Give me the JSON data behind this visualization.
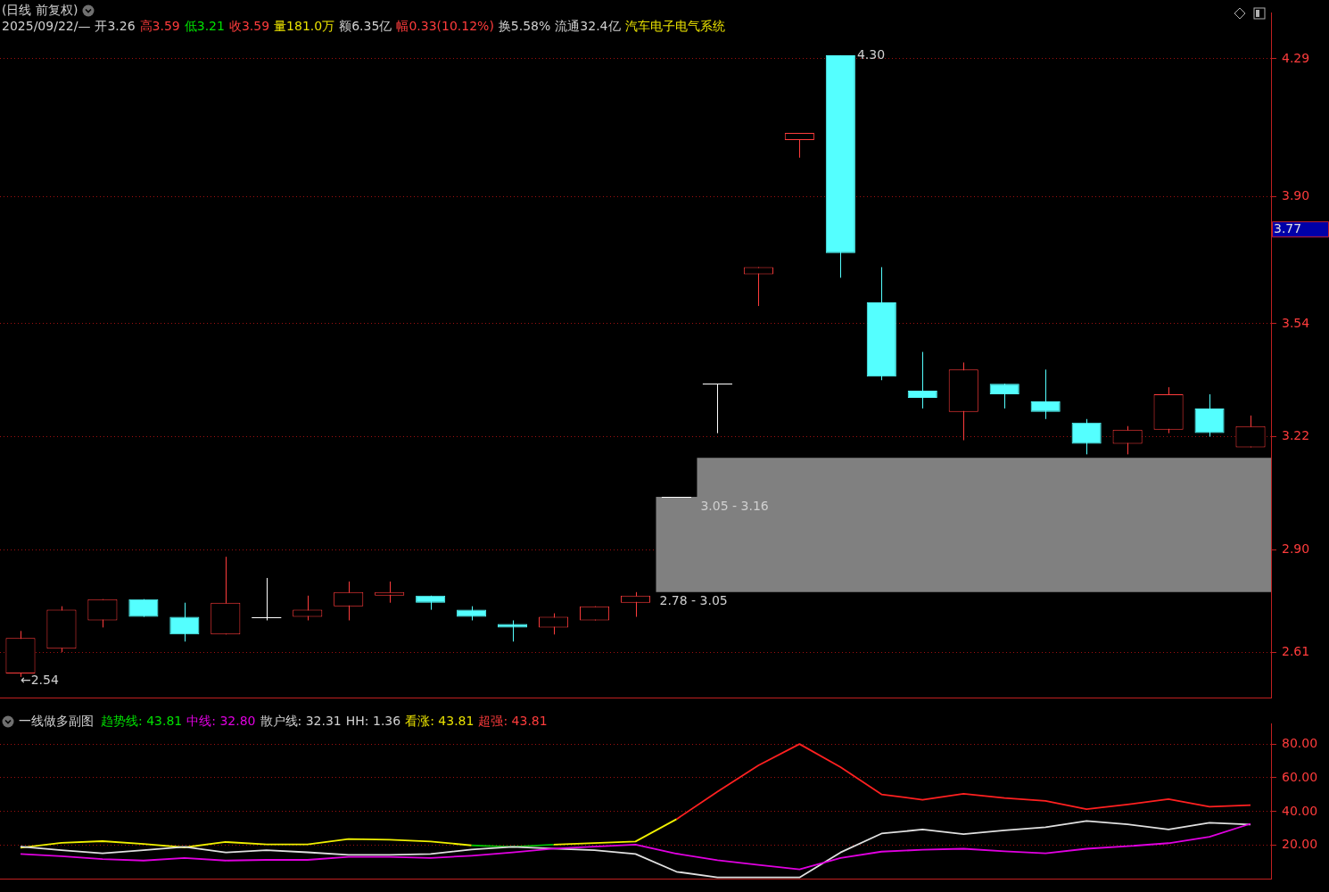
{
  "chart_data": [
    {
      "type": "candlestick",
      "title": "(日线 前复权)",
      "categories": [
        null,
        null,
        null,
        null,
        null,
        null,
        null,
        null,
        null,
        null,
        null,
        null,
        null,
        null,
        null,
        null,
        null,
        null,
        null,
        null,
        null,
        null,
        null,
        null,
        null,
        null,
        null,
        null,
        null,
        null,
        null
      ],
      "ohlc": [
        [
          2.55,
          2.67,
          2.54,
          2.65
        ],
        [
          2.62,
          2.74,
          2.61,
          2.73
        ],
        [
          2.7,
          2.76,
          2.68,
          2.76
        ],
        [
          2.76,
          2.76,
          2.71,
          2.71
        ],
        [
          2.71,
          2.75,
          2.64,
          2.66
        ],
        [
          2.66,
          2.88,
          2.66,
          2.75
        ],
        [
          2.71,
          2.82,
          2.7,
          2.71
        ],
        [
          2.71,
          2.77,
          2.7,
          2.73
        ],
        [
          2.74,
          2.81,
          2.7,
          2.78
        ],
        [
          2.77,
          2.81,
          2.75,
          2.78
        ],
        [
          2.77,
          2.77,
          2.73,
          2.75
        ],
        [
          2.73,
          2.74,
          2.7,
          2.71
        ],
        [
          2.69,
          2.7,
          2.64,
          2.68
        ],
        [
          2.68,
          2.72,
          2.66,
          2.71
        ],
        [
          2.7,
          2.74,
          2.7,
          2.74
        ],
        [
          2.75,
          2.78,
          2.71,
          2.77
        ],
        [
          3.05,
          3.05,
          3.05,
          3.05
        ],
        [
          3.37,
          3.37,
          3.23,
          3.37
        ],
        [
          3.68,
          3.7,
          3.59,
          3.7
        ],
        [
          4.06,
          4.08,
          4.01,
          4.08
        ],
        [
          4.3,
          4.3,
          3.67,
          3.74
        ],
        [
          3.6,
          3.7,
          3.38,
          3.39
        ],
        [
          3.35,
          3.46,
          3.3,
          3.33
        ],
        [
          3.29,
          3.43,
          3.21,
          3.41
        ],
        [
          3.37,
          3.37,
          3.3,
          3.34
        ],
        [
          3.32,
          3.41,
          3.27,
          3.29
        ],
        [
          3.26,
          3.27,
          3.17,
          3.2
        ],
        [
          3.2,
          3.25,
          3.17,
          3.24
        ],
        [
          3.24,
          3.36,
          3.23,
          3.34
        ],
        [
          3.3,
          3.34,
          3.22,
          3.23
        ],
        [
          3.19,
          3.28,
          3.19,
          3.25
        ]
      ],
      "colors": [
        "#ff3c3c",
        "#ff3c3c",
        "#ff3c3c",
        "#54ffff",
        "#54ffff",
        "#ff3c3c",
        "#ffffff",
        "#ff3c3c",
        "#ff3c3c",
        "#ff3c3c",
        "#54ffff",
        "#54ffff",
        "#54ffff",
        "#ff3c3c",
        "#ff3c3c",
        "#ff3c3c",
        "#ffffff",
        "#ffffff",
        "#ff3c3c",
        "#ff3c3c",
        "#54ffff",
        "#54ffff",
        "#54ffff",
        "#ff3c3c",
        "#54ffff",
        "#54ffff",
        "#54ffff",
        "#ff3c3c",
        "#ff3c3c",
        "#54ffff",
        "#ff3c3c"
      ],
      "ylim": [
        2.48,
        4.42
      ],
      "yticks": [
        2.61,
        {
          "value": 2.9,
          "label": "2.90"
        },
        3.22,
        3.54,
        {
          "value": 3.9,
          "label": "3.90"
        },
        4.29
      ],
      "grid": "y",
      "tick_labels": "y",
      "bands": [
        {
          "axis": "y",
          "from": 2.78,
          "to": 3.05,
          "label": "2.78 - 3.05",
          "color": "#808080"
        },
        {
          "axis": "y",
          "from": 3.05,
          "to": 3.16,
          "label": "3.05 - 3.16",
          "color": "#808080"
        }
      ],
      "annotations": [
        "2025/09/22/—",
        "开3.26",
        "高3.59",
        "低3.21",
        "收3.59",
        "量181.0万",
        "额6.35亿",
        "幅0.33(10.12%)",
        "换5.58%",
        "流通32.4亿",
        "汽车电子电气系统",
        "4.30",
        "←2.54",
        "3.77"
      ]
    },
    {
      "type": "line",
      "title": "一线做多副图",
      "categories": [
        null,
        null,
        null,
        null,
        null,
        null,
        null,
        null,
        null,
        null,
        null,
        null,
        null,
        null,
        null,
        null,
        null,
        null,
        null,
        null,
        null,
        null,
        null,
        null,
        null,
        null,
        null,
        null,
        null,
        null,
        null
      ],
      "series": [
        {
          "color": "#e000e0",
          "values": [
            14.9,
            13.6,
            11.9,
            11.0,
            12.5,
            11.0,
            11.4,
            11.4,
            13.2,
            13.2,
            12.5,
            13.9,
            15.8,
            18.1,
            19.3,
            20.5,
            15.1,
            11.2,
            8.4,
            5.8,
            12.5,
            16.3,
            17.4,
            18.0,
            16.5,
            15.3,
            18.0,
            19.5,
            21.3,
            25.1,
            32.8
          ]
        },
        {
          "color": "#e0e0e0",
          "values": [
            19.3,
            17.2,
            15.3,
            17.2,
            19.1,
            15.8,
            17.2,
            15.9,
            14.4,
            14.4,
            14.9,
            17.5,
            19.1,
            18.1,
            17.2,
            14.9,
            4.4,
            1,
            1,
            1,
            15.8,
            27.0,
            29.4,
            26.7,
            28.9,
            30.7,
            34.5,
            32.5,
            29.4,
            33.4,
            32.3
          ]
        },
        {
          "color": "#00c000",
          "values": [
            null,
            null,
            null,
            null,
            null,
            null,
            null,
            null,
            null,
            null,
            null,
            20.0,
            19.1,
            20.5,
            null,
            null,
            null,
            null,
            null,
            null,
            null,
            null,
            null,
            null,
            null,
            null,
            null,
            null,
            null,
            null,
            null
          ]
        },
        {
          "color": "#f0f000",
          "values": [
            18.6,
            21.5,
            22.5,
            20.9,
            18.8,
            22.0,
            20.6,
            20.6,
            23.7,
            23.4,
            22.3,
            20.0,
            null,
            20.5,
            21.4,
            22.3,
            35.5,
            null,
            null,
            null,
            null,
            null,
            null,
            null,
            null,
            null,
            null,
            null,
            null,
            null,
            null
          ]
        },
        {
          "color": "#ff2020",
          "values": [
            null,
            null,
            null,
            null,
            null,
            null,
            null,
            null,
            null,
            null,
            null,
            null,
            null,
            null,
            null,
            null,
            35.5,
            51.8,
            67.4,
            80,
            66.3,
            50.2,
            47.0,
            50.5,
            48.0,
            46.3,
            41.4,
            44.2,
            47.4,
            42.9,
            43.8
          ]
        }
      ],
      "ylim": [
        0,
        92
      ],
      "yticks": [
        {
          "value": 20,
          "label": "20.00"
        },
        {
          "value": 40,
          "label": "40.00"
        },
        {
          "value": 60,
          "label": "60.00"
        },
        {
          "value": 80,
          "label": "80.00"
        }
      ],
      "grid": "y",
      "tick_labels": "y",
      "annotations": [
        "趋势线: 43.81",
        "中线: 32.80",
        "散户线: 32.31",
        "HH: 1.36",
        "看涨: 43.81",
        "超强: 43.81"
      ]
    }
  ]
}
